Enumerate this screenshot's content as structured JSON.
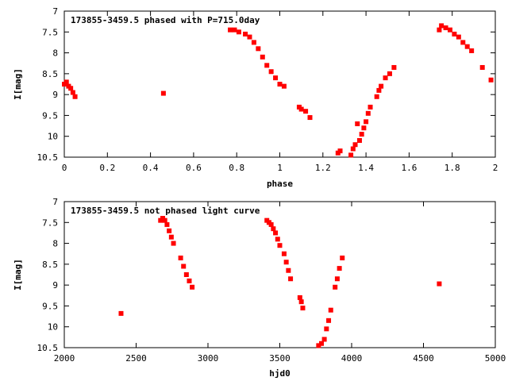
{
  "chart_data": [
    {
      "type": "scatter",
      "title": "173855-3459.5 phased with P=715.0day",
      "xlabel": "phase",
      "ylabel": "I[mag]",
      "xlim": [
        0,
        2
      ],
      "ylim": [
        7,
        10.5
      ],
      "y_inverted": true,
      "xticks": [
        0,
        0.2,
        0.4,
        0.6,
        0.8,
        1,
        1.2,
        1.4,
        1.6,
        1.8,
        2
      ],
      "xtick_labels": [
        "0",
        "0.2",
        "0.4",
        "0.6",
        "0.8",
        "1",
        "1.2",
        "1.4",
        "1.6",
        "1.8",
        "2"
      ],
      "yticks": [
        7,
        7.5,
        8,
        8.5,
        9,
        9.5,
        10,
        10.5
      ],
      "ytick_labels": [
        "7",
        "7.5",
        "8",
        "8.5",
        "9",
        "9.5",
        "10",
        "10.5"
      ],
      "grid": false,
      "marker_color": "#ff0000",
      "series": [
        {
          "x": [
            0.0,
            0.01,
            0.02,
            0.03,
            0.04,
            0.05,
            0.46,
            0.77,
            0.79,
            0.81,
            0.84,
            0.86,
            0.88,
            0.9,
            0.92,
            0.94,
            0.96,
            0.98,
            1.0,
            1.02,
            1.09,
            1.1,
            1.12,
            1.14,
            1.27,
            1.28,
            1.33,
            1.34,
            1.35,
            1.36,
            1.37,
            1.38,
            1.39,
            1.4,
            1.41,
            1.42,
            1.45,
            1.46,
            1.47,
            1.49,
            1.51,
            1.53,
            1.74,
            1.75,
            1.77,
            1.79,
            1.81,
            1.83,
            1.85,
            1.87,
            1.89,
            1.94,
            1.98
          ],
          "y": [
            8.75,
            8.7,
            8.8,
            8.85,
            8.95,
            9.05,
            8.97,
            7.45,
            7.45,
            7.5,
            7.55,
            7.62,
            7.75,
            7.9,
            8.1,
            8.3,
            8.45,
            8.6,
            8.75,
            8.8,
            9.3,
            9.35,
            9.4,
            9.55,
            10.4,
            10.35,
            10.45,
            10.3,
            10.2,
            9.7,
            10.1,
            9.95,
            9.8,
            9.65,
            9.45,
            9.3,
            9.05,
            8.9,
            8.8,
            8.6,
            8.5,
            8.35,
            7.45,
            7.35,
            7.4,
            7.45,
            7.55,
            7.62,
            7.75,
            7.85,
            7.95,
            8.35,
            8.65
          ]
        }
      ]
    },
    {
      "type": "scatter",
      "title": "173855-3459.5 not phased light curve",
      "xlabel": "hjd0",
      "ylabel": "I[mag]",
      "xlim": [
        2000,
        5000
      ],
      "ylim": [
        7,
        10.5
      ],
      "y_inverted": true,
      "xticks": [
        2000,
        2500,
        3000,
        3500,
        4000,
        4500,
        5000
      ],
      "xtick_labels": [
        "2000",
        "2500",
        "3000",
        "3500",
        "4000",
        "4500",
        "5000"
      ],
      "yticks": [
        7,
        7.5,
        8,
        8.5,
        9,
        9.5,
        10,
        10.5
      ],
      "ytick_labels": [
        "7",
        "7.5",
        "8",
        "8.5",
        "9",
        "9.5",
        "10",
        "10.5"
      ],
      "grid": false,
      "marker_color": "#ff0000",
      "series": [
        {
          "x": [
            2395,
            2670,
            2685,
            2700,
            2715,
            2730,
            2745,
            2760,
            2810,
            2830,
            2850,
            2870,
            2890,
            3410,
            3425,
            3440,
            3455,
            3470,
            3485,
            3500,
            3530,
            3545,
            3560,
            3575,
            3640,
            3650,
            3660,
            3770,
            3790,
            3810,
            3825,
            3840,
            3855,
            3885,
            3900,
            3915,
            3935,
            4610
          ],
          "y": [
            9.68,
            7.45,
            7.4,
            7.45,
            7.55,
            7.7,
            7.85,
            8.0,
            8.35,
            8.55,
            8.75,
            8.9,
            9.05,
            7.45,
            7.5,
            7.55,
            7.65,
            7.75,
            7.9,
            8.05,
            8.25,
            8.45,
            8.65,
            8.85,
            9.3,
            9.4,
            9.55,
            10.45,
            10.4,
            10.3,
            10.05,
            9.85,
            9.6,
            9.05,
            8.85,
            8.6,
            8.35,
            8.97
          ]
        }
      ]
    }
  ]
}
